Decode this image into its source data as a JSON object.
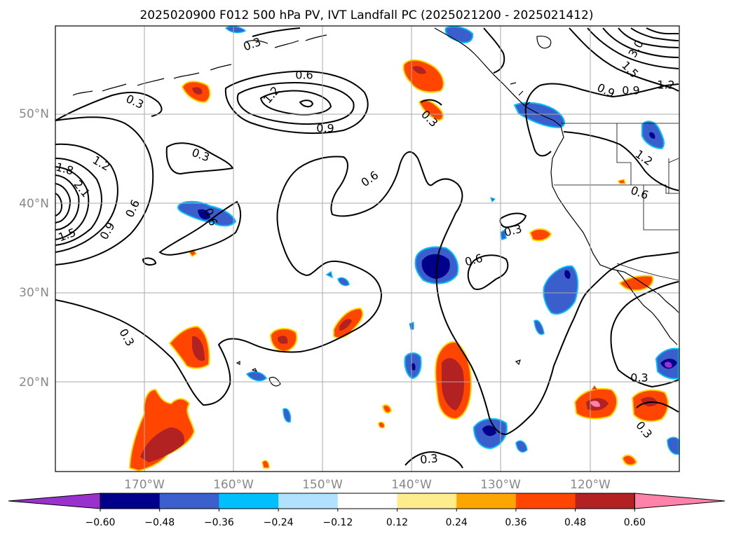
{
  "title": "2025020900 F012 500 hPa PV, IVT Landfall PC (2025021200 - 2025021412)",
  "map": {
    "lat_labels": [
      "50°N",
      "40°N",
      "30°N",
      "20°N"
    ],
    "lon_labels": [
      "170°W",
      "160°W",
      "150°W",
      "140°W",
      "130°W",
      "120°W"
    ],
    "contour_labels": [
      "0.3",
      "0.3",
      "0.3",
      "0.3",
      "0.3",
      "0.3",
      "0.3",
      "0.3",
      "0.3",
      "0.6",
      "0.6",
      "0.6",
      "0.6",
      "0.6",
      "0.6",
      "0.9",
      "0.9",
      "0.9",
      "0.9",
      "1.2",
      "1.2",
      "1.2",
      "1.2",
      "1.5",
      "1.5",
      "1.8",
      "2.1",
      "3.0"
    ]
  },
  "colorbar": {
    "tick_labels": [
      "−0.60",
      "−0.48",
      "−0.36",
      "−0.24",
      "−0.12",
      "0.12",
      "0.24",
      "0.36",
      "0.48",
      "0.60"
    ],
    "colors": [
      "#9932cc",
      "#00008b",
      "#3a5fcd",
      "#00bfff",
      "#b0e2ff",
      "#ffffff",
      "#ffec8b",
      "#ffa500",
      "#ff4500",
      "#b22222",
      "#ff82ab"
    ]
  }
}
